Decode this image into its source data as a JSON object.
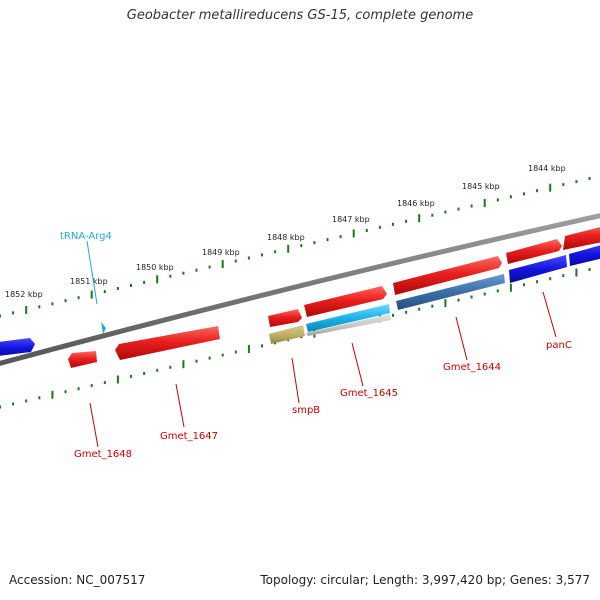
{
  "title": "Geobacter metallireducens GS-15, complete genome",
  "footer": {
    "accession": "Accession: NC_007517",
    "stats": "Topology: circular; Length: 3,997,420 bp; Genes: 3,577"
  },
  "ruler_labels": [
    "1852 kbp",
    "1851 kbp",
    "1850 kbp",
    "1849 kbp",
    "1848 kbp",
    "1847 kbp",
    "1846 kbp",
    "1845 kbp",
    "1844 kbp"
  ],
  "features": {
    "trna": "tRNA-Arg4",
    "gmet_1648": "Gmet_1648",
    "gmet_1647": "Gmet_1647",
    "smpb": "smpB",
    "gmet_1645": "Gmet_1645",
    "gmet_1644": "Gmet_1644",
    "panc": "panC"
  },
  "colors": {
    "gene": "#e8201e",
    "gene_highlight": "#ff5a50",
    "cds_blue": "#1414e0",
    "cds_steel": "#3a6fa8",
    "cds_cyan": "#1ab4e8",
    "cds_olive": "#c0b068",
    "cds_grey": "#c8c8c8",
    "backbone": "#777777",
    "tick_dots": "#1a7a1a",
    "label_line": "#cc0000",
    "trna": "#22a8d8"
  }
}
